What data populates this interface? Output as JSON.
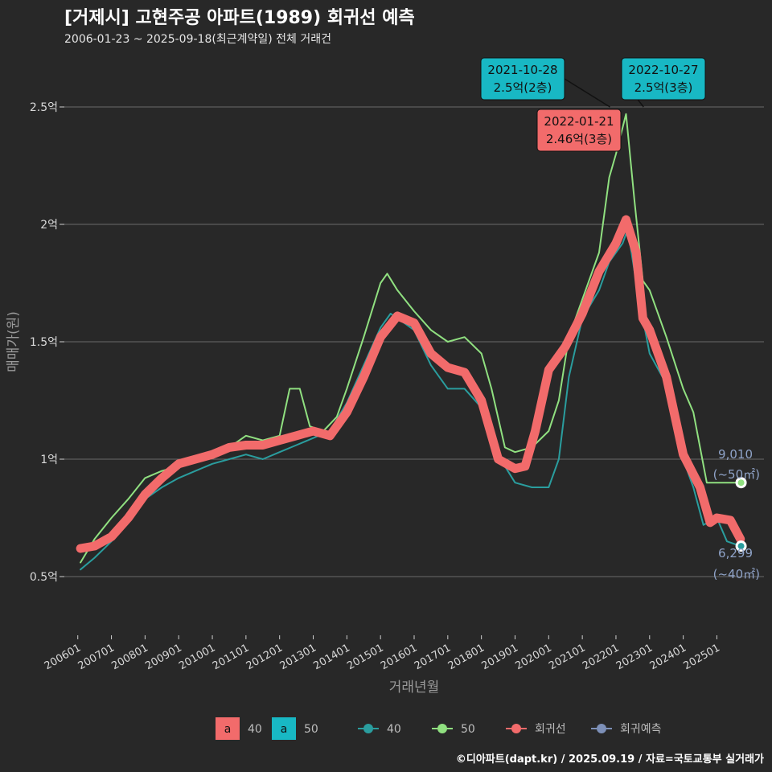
{
  "chart_data": {
    "type": "line",
    "title": "[거제시] 고현주공 아파트(1989) 회귀선 예측",
    "subtitle": "2006-01-23 ~ 2025-09-18(최근계약일) 전체 거래건",
    "xlabel": "거래년월",
    "ylabel": "매매가(원)",
    "caption": "©디아파트(dapt.kr) / 2025.09.19 / 자료=국토교통부 실거래가",
    "x_ticks": [
      "200601",
      "200701",
      "200801",
      "200901",
      "201001",
      "201101",
      "201201",
      "201301",
      "201401",
      "201501",
      "201601",
      "201701",
      "201801",
      "201901",
      "202001",
      "202101",
      "202201",
      "202301",
      "202401",
      "202501"
    ],
    "y_ticks": [
      {
        "value": 0.5,
        "label": "0.5억"
      },
      {
        "value": 1.0,
        "label": "1억"
      },
      {
        "value": 1.5,
        "label": "1.5억"
      },
      {
        "value": 2.0,
        "label": "2억"
      },
      {
        "value": 2.5,
        "label": "2.5억"
      }
    ],
    "xlim": [
      2005.6,
      2026.4
    ],
    "ylim": [
      0.25,
      2.75
    ],
    "grid": true,
    "series": [
      {
        "name": "40",
        "color": "#2a9d9e",
        "points": [
          [
            2006.08,
            0.53
          ],
          [
            2006.5,
            0.58
          ],
          [
            2007.0,
            0.65
          ],
          [
            2007.5,
            0.74
          ],
          [
            2008.0,
            0.83
          ],
          [
            2008.5,
            0.88
          ],
          [
            2009.0,
            0.92
          ],
          [
            2009.5,
            0.95
          ],
          [
            2010.0,
            0.98
          ],
          [
            2010.5,
            1.0
          ],
          [
            2011.0,
            1.02
          ],
          [
            2011.5,
            1.0
          ],
          [
            2012.0,
            1.03
          ],
          [
            2012.5,
            1.06
          ],
          [
            2013.0,
            1.09
          ],
          [
            2013.5,
            1.12
          ],
          [
            2014.0,
            1.24
          ],
          [
            2014.5,
            1.4
          ],
          [
            2015.0,
            1.56
          ],
          [
            2015.3,
            1.62
          ],
          [
            2015.7,
            1.58
          ],
          [
            2016.0,
            1.55
          ],
          [
            2016.5,
            1.4
          ],
          [
            2017.0,
            1.3
          ],
          [
            2017.5,
            1.3
          ],
          [
            2018.0,
            1.22
          ],
          [
            2018.3,
            1.1
          ],
          [
            2018.7,
            0.97
          ],
          [
            2019.0,
            0.9
          ],
          [
            2019.5,
            0.88
          ],
          [
            2020.0,
            0.88
          ],
          [
            2020.3,
            1.0
          ],
          [
            2020.6,
            1.35
          ],
          [
            2021.0,
            1.6
          ],
          [
            2021.5,
            1.72
          ],
          [
            2021.8,
            1.84
          ],
          [
            2022.0,
            1.88
          ],
          [
            2022.2,
            1.92
          ],
          [
            2022.35,
            1.98
          ],
          [
            2022.55,
            1.8
          ],
          [
            2022.8,
            1.6
          ],
          [
            2023.0,
            1.45
          ],
          [
            2023.5,
            1.32
          ],
          [
            2024.0,
            1.0
          ],
          [
            2024.3,
            0.88
          ],
          [
            2024.6,
            0.72
          ],
          [
            2025.0,
            0.75
          ],
          [
            2025.3,
            0.65
          ],
          [
            2025.7,
            0.63
          ]
        ]
      },
      {
        "name": "50",
        "color": "#90e080",
        "points": [
          [
            2006.08,
            0.56
          ],
          [
            2006.5,
            0.66
          ],
          [
            2007.0,
            0.75
          ],
          [
            2007.5,
            0.83
          ],
          [
            2008.0,
            0.92
          ],
          [
            2008.5,
            0.95
          ],
          [
            2009.0,
            0.97
          ],
          [
            2009.5,
            1.0
          ],
          [
            2010.0,
            1.02
          ],
          [
            2010.5,
            1.05
          ],
          [
            2011.0,
            1.1
          ],
          [
            2011.5,
            1.08
          ],
          [
            2012.0,
            1.1
          ],
          [
            2012.3,
            1.3
          ],
          [
            2012.6,
            1.3
          ],
          [
            2012.9,
            1.14
          ],
          [
            2013.3,
            1.12
          ],
          [
            2013.7,
            1.18
          ],
          [
            2014.0,
            1.3
          ],
          [
            2014.5,
            1.52
          ],
          [
            2015.0,
            1.75
          ],
          [
            2015.2,
            1.79
          ],
          [
            2015.5,
            1.72
          ],
          [
            2016.0,
            1.63
          ],
          [
            2016.5,
            1.55
          ],
          [
            2017.0,
            1.5
          ],
          [
            2017.5,
            1.52
          ],
          [
            2018.0,
            1.45
          ],
          [
            2018.3,
            1.3
          ],
          [
            2018.7,
            1.05
          ],
          [
            2019.0,
            1.03
          ],
          [
            2019.5,
            1.05
          ],
          [
            2020.0,
            1.12
          ],
          [
            2020.3,
            1.25
          ],
          [
            2020.6,
            1.52
          ],
          [
            2021.0,
            1.68
          ],
          [
            2021.5,
            1.88
          ],
          [
            2021.8,
            2.2
          ],
          [
            2022.0,
            2.3
          ],
          [
            2022.3,
            2.47
          ],
          [
            2022.55,
            2.1
          ],
          [
            2022.8,
            1.76
          ],
          [
            2023.0,
            1.72
          ],
          [
            2023.5,
            1.52
          ],
          [
            2024.0,
            1.3
          ],
          [
            2024.3,
            1.2
          ],
          [
            2024.7,
            0.9
          ],
          [
            2025.0,
            0.9
          ],
          [
            2025.7,
            0.9
          ]
        ]
      },
      {
        "name": "회귀선",
        "color": "#f26b6b",
        "points": [
          [
            2006.08,
            0.62
          ],
          [
            2006.5,
            0.63
          ],
          [
            2007.0,
            0.67
          ],
          [
            2007.5,
            0.75
          ],
          [
            2008.0,
            0.85
          ],
          [
            2008.5,
            0.92
          ],
          [
            2009.0,
            0.98
          ],
          [
            2009.5,
            1.0
          ],
          [
            2010.0,
            1.02
          ],
          [
            2010.5,
            1.05
          ],
          [
            2011.0,
            1.06
          ],
          [
            2011.5,
            1.06
          ],
          [
            2012.0,
            1.08
          ],
          [
            2012.5,
            1.1
          ],
          [
            2013.0,
            1.12
          ],
          [
            2013.5,
            1.1
          ],
          [
            2014.0,
            1.2
          ],
          [
            2014.5,
            1.35
          ],
          [
            2015.0,
            1.52
          ],
          [
            2015.5,
            1.61
          ],
          [
            2016.0,
            1.58
          ],
          [
            2016.5,
            1.45
          ],
          [
            2017.0,
            1.39
          ],
          [
            2017.5,
            1.37
          ],
          [
            2018.0,
            1.25
          ],
          [
            2018.5,
            1.0
          ],
          [
            2019.0,
            0.96
          ],
          [
            2019.3,
            0.97
          ],
          [
            2019.6,
            1.12
          ],
          [
            2020.0,
            1.38
          ],
          [
            2020.5,
            1.48
          ],
          [
            2021.0,
            1.62
          ],
          [
            2021.5,
            1.8
          ],
          [
            2022.0,
            1.92
          ],
          [
            2022.3,
            2.02
          ],
          [
            2022.6,
            1.88
          ],
          [
            2022.8,
            1.6
          ],
          [
            2023.0,
            1.55
          ],
          [
            2023.5,
            1.35
          ],
          [
            2024.0,
            1.02
          ],
          [
            2024.5,
            0.88
          ],
          [
            2024.8,
            0.73
          ],
          [
            2025.0,
            0.75
          ],
          [
            2025.4,
            0.74
          ],
          [
            2025.7,
            0.66
          ]
        ]
      }
    ],
    "forecast_points": [
      {
        "series": "50",
        "x": 2025.72,
        "y": 0.9,
        "label": "9,010",
        "sublabel": "(~50㎡)"
      },
      {
        "series": "40",
        "x": 2025.72,
        "y": 0.6299,
        "label": "6,299",
        "sublabel": "(~40㎡)"
      }
    ],
    "annotations": [
      {
        "date": "2021-10-28",
        "text": "2.5억(2층)",
        "x": 2021.82,
        "y": 2.5,
        "fill": "#18b8c4"
      },
      {
        "date": "2022-01-21",
        "text": "2.46억(3층)",
        "x": 2022.06,
        "y": 2.46,
        "fill": "#f26b6b"
      },
      {
        "date": "2022-10-27",
        "text": "2.5억(3층)",
        "x": 2022.82,
        "y": 2.5,
        "fill": "#18b8c4"
      }
    ],
    "fill_legend": [
      {
        "key": "a",
        "label": "40",
        "color": "#f26b6b"
      },
      {
        "key": "a",
        "label": "50",
        "color": "#18b8c4"
      }
    ],
    "line_legend": [
      {
        "label": "40",
        "color": "#2a9d9e"
      },
      {
        "label": "50",
        "color": "#90e080"
      },
      {
        "label": "회귀선",
        "color": "#f26b6b"
      },
      {
        "label": "회귀예측",
        "color": "#7d90b8"
      }
    ]
  }
}
